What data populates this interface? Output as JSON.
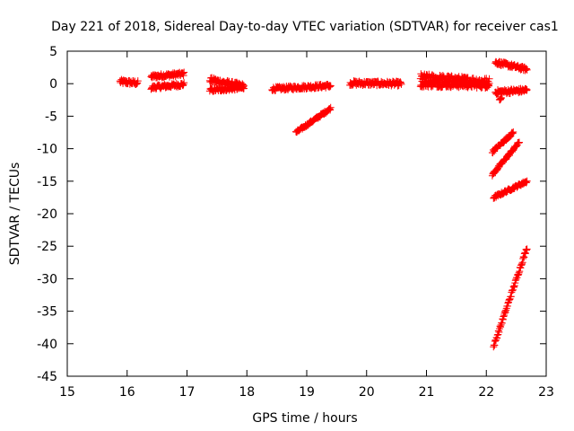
{
  "chart_data": {
    "type": "scatter",
    "title": "Day 221 of 2018, Sidereal Day-to-day VTEC variation (SDTVAR) for receiver cas1",
    "xlabel": "GPS time / hours",
    "ylabel": "SDTVAR / TECUs",
    "xlim": [
      15,
      23
    ],
    "ylim": [
      -45,
      5
    ],
    "xticks": [
      "15",
      "16",
      "17",
      "18",
      "19",
      "20",
      "21",
      "22",
      "23"
    ],
    "yticks": [
      "5",
      "0",
      "-5",
      "-10",
      "-15",
      "-20",
      "-25",
      "-30",
      "-35",
      "-40",
      "-45"
    ],
    "grid": false,
    "marker": "+",
    "series": [
      {
        "name": "SDTVAR",
        "color": "#ff0000",
        "segments": [
          {
            "x0": 15.88,
            "x1": 16.18,
            "y0": 0.3,
            "y1": 0.1,
            "jitter": 0.35
          },
          {
            "x0": 16.4,
            "x1": 16.95,
            "y0": 1.1,
            "y1": 1.5,
            "jitter": 0.3
          },
          {
            "x0": 16.4,
            "x1": 16.95,
            "y0": -0.6,
            "y1": -0.1,
            "jitter": 0.3
          },
          {
            "x0": 17.38,
            "x1": 17.95,
            "y0": 0.6,
            "y1": -0.4,
            "jitter": 0.4
          },
          {
            "x0": 17.38,
            "x1": 17.95,
            "y0": -1.0,
            "y1": -0.6,
            "jitter": 0.3
          },
          {
            "x0": 18.42,
            "x1": 19.4,
            "y0": -0.8,
            "y1": -0.3,
            "jitter": 0.3
          },
          {
            "x0": 18.82,
            "x1": 19.4,
            "y0": -7.5,
            "y1": -3.8,
            "jitter": 0.2
          },
          {
            "x0": 19.72,
            "x1": 20.58,
            "y0": 0.1,
            "y1": 0.0,
            "jitter": 0.35
          },
          {
            "x0": 20.9,
            "x1": 22.05,
            "y0": 1.0,
            "y1": 0.3,
            "jitter": 0.55
          },
          {
            "x0": 20.9,
            "x1": 22.05,
            "y0": 0.0,
            "y1": -0.2,
            "jitter": 0.5
          },
          {
            "x0": 22.15,
            "x1": 22.68,
            "y0": 3.3,
            "y1": 2.2,
            "jitter": 0.3
          },
          {
            "x0": 22.15,
            "x1": 22.68,
            "y0": -1.3,
            "y1": -1.0,
            "jitter": 0.35
          },
          {
            "x0": 22.22,
            "x1": 22.25,
            "y0": -2.5,
            "y1": -2.2,
            "jitter": 0.1
          },
          {
            "x0": 22.1,
            "x1": 22.45,
            "y0": -10.5,
            "y1": -7.5,
            "jitter": 0.2
          },
          {
            "x0": 22.1,
            "x1": 22.55,
            "y0": -14.0,
            "y1": -9.0,
            "jitter": 0.2
          },
          {
            "x0": 22.12,
            "x1": 22.68,
            "y0": -17.5,
            "y1": -15.0,
            "jitter": 0.2
          },
          {
            "x0": 22.12,
            "x1": 22.68,
            "y0": -40.5,
            "y1": -25.2,
            "jitter": 0.25
          }
        ]
      }
    ]
  }
}
